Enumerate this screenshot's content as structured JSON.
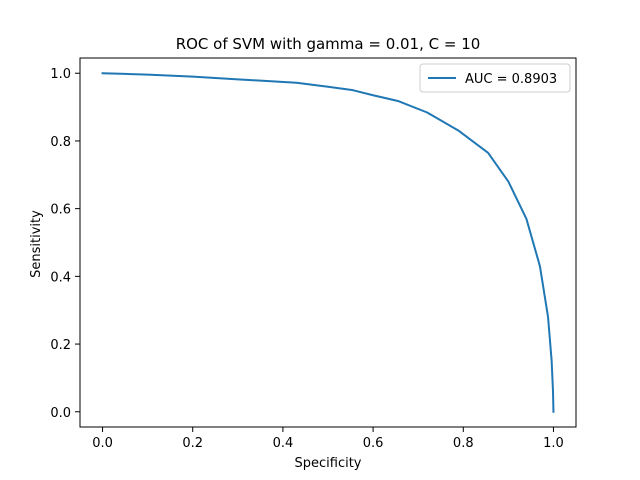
{
  "chart_data": {
    "type": "line",
    "title": "ROC of SVM with gamma = 0.01, C = 10",
    "xlabel": "Specificity",
    "ylabel": "Sensitivity",
    "xlim": [
      -0.05,
      1.05
    ],
    "ylim": [
      -0.045,
      1.045
    ],
    "x_ticks": [
      0.0,
      0.2,
      0.4,
      0.6,
      0.8,
      1.0
    ],
    "x_tick_labels": [
      "0.0",
      "0.2",
      "0.4",
      "0.6",
      "0.8",
      "1.0"
    ],
    "y_ticks": [
      0.0,
      0.2,
      0.4,
      0.6,
      0.8,
      1.0
    ],
    "y_tick_labels": [
      "0.0",
      "0.2",
      "0.4",
      "0.6",
      "0.8",
      "1.0"
    ],
    "grid": false,
    "legend_position": "top-right",
    "series": [
      {
        "name": "AUC = 0.8903",
        "color": "#1f77b4",
        "x": [
          0.0,
          0.05,
          0.1,
          0.15,
          0.2,
          0.25,
          0.3,
          0.35,
          0.43,
          0.5,
          0.555,
          0.6,
          0.655,
          0.72,
          0.79,
          0.855,
          0.9,
          0.94,
          0.97,
          0.988,
          0.996,
          0.999,
          1.0
        ],
        "y": [
          1.0,
          0.998,
          0.996,
          0.993,
          0.99,
          0.986,
          0.982,
          0.978,
          0.972,
          0.96,
          0.95,
          0.935,
          0.918,
          0.884,
          0.83,
          0.765,
          0.68,
          0.57,
          0.43,
          0.28,
          0.15,
          0.06,
          0.0
        ]
      }
    ]
  }
}
